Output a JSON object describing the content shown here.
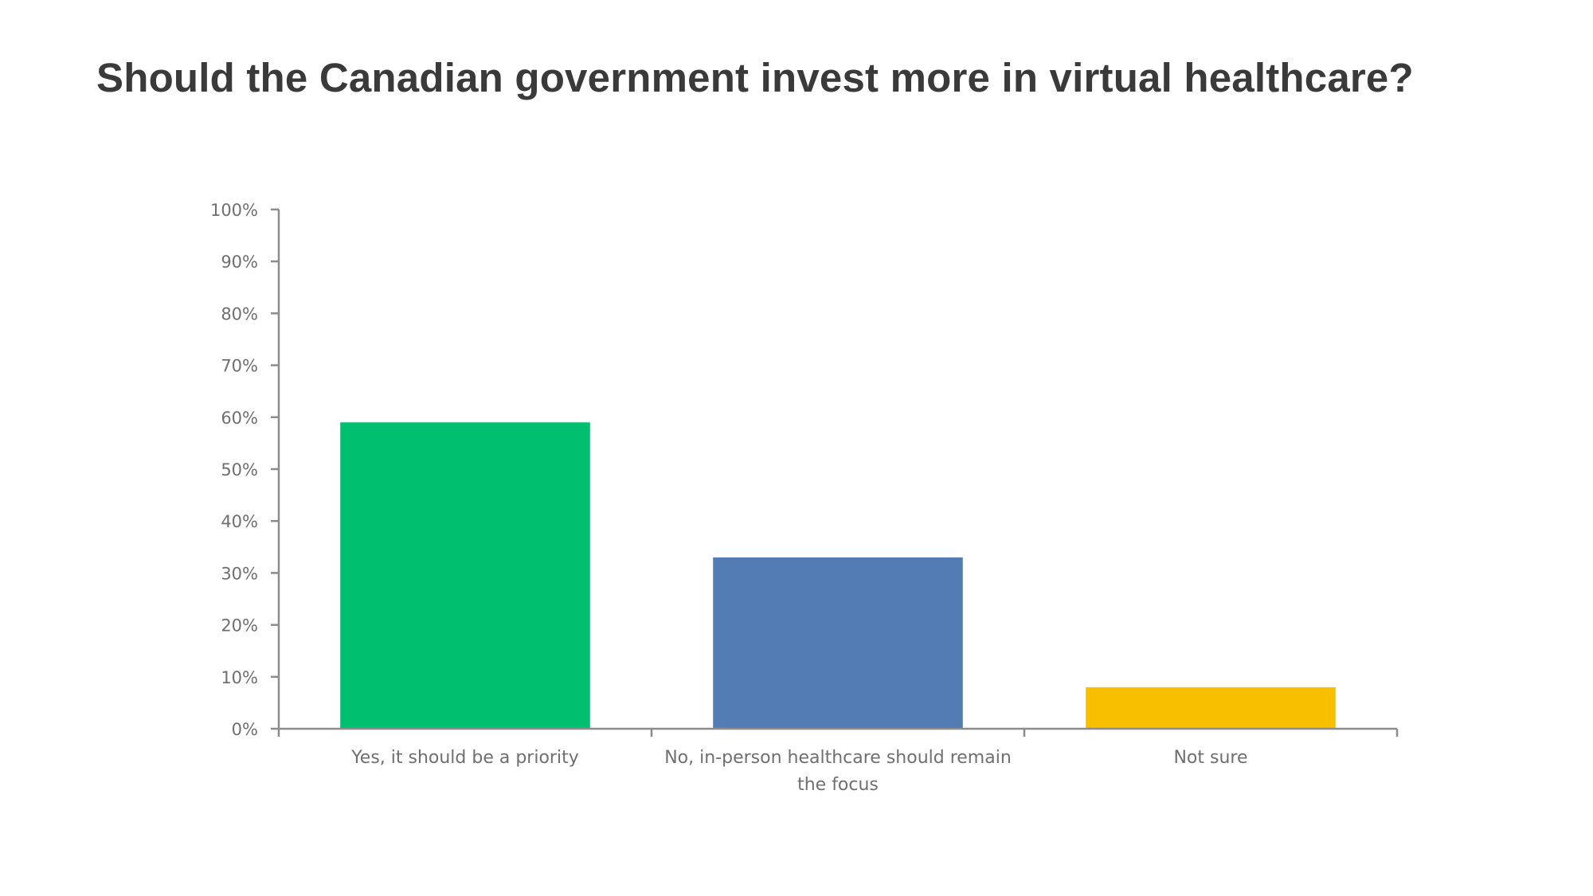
{
  "chart_data": {
    "type": "bar",
    "title": "Should the Canadian government invest more in virtual healthcare?",
    "categories": [
      [
        "Yes, it should be a priority"
      ],
      [
        "No, in-person healthcare should remain",
        "the focus"
      ],
      [
        "Not sure"
      ]
    ],
    "values": [
      59,
      33,
      8
    ],
    "colors": [
      "#00bf6f",
      "#537bb4",
      "#f8be00"
    ],
    "ylim": [
      0,
      100
    ],
    "yticks": [
      0,
      10,
      20,
      30,
      40,
      50,
      60,
      70,
      80,
      90,
      100
    ],
    "ytick_format": "{v}%",
    "xlabel": "",
    "ylabel": "",
    "grid": false,
    "legend": "none"
  }
}
